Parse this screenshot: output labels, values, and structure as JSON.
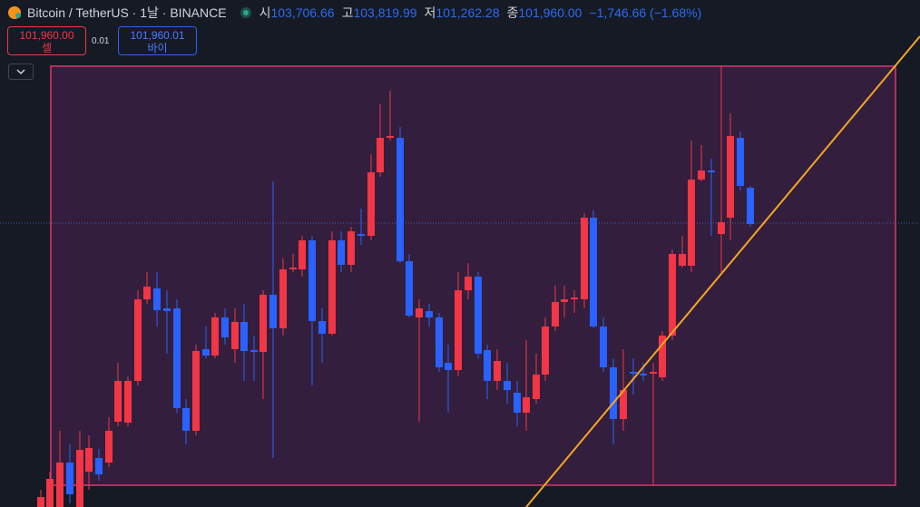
{
  "header": {
    "symbol": "Bitcoin / TetherUS · 1날 · BINANCE",
    "ohlc": [
      {
        "key": "시",
        "value": "103,706.66"
      },
      {
        "key": "고",
        "value": "103,819.99"
      },
      {
        "key": "저",
        "value": "101,262.28"
      },
      {
        "key": "종",
        "value": "101,960.00"
      }
    ],
    "change": "−1,746.66 (−1.68%)"
  },
  "trade": {
    "sell_price": "101,960.00",
    "sell_label": "셀",
    "spread": "0.01",
    "buy_price": "101,960.01",
    "buy_label": "바이"
  }
}
